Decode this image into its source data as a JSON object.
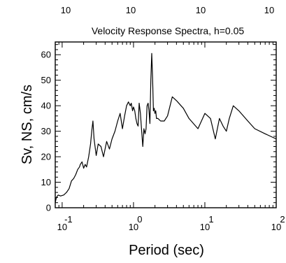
{
  "chart_data": {
    "type": "line",
    "title": "Velocity Response Spectra, h=0.05",
    "xlabel": "Period (sec)",
    "ylabel": "Sv, NS, cm/s",
    "xscale": "log",
    "xlim": [
      0.08,
      100
    ],
    "ylim": [
      0,
      65
    ],
    "grid": false,
    "x_ticks": [
      {
        "value": 0.1,
        "base": "10",
        "exp": "-1"
      },
      {
        "value": 1,
        "base": "10",
        "exp": "0"
      },
      {
        "value": 10,
        "base": "10",
        "exp": "1"
      },
      {
        "value": 100,
        "base": "10",
        "exp": "2"
      }
    ],
    "top_ticks": [
      {
        "value": 0.1,
        "label": "10"
      },
      {
        "value": 1,
        "label": "10"
      },
      {
        "value": 10,
        "label": "10"
      },
      {
        "value": 100,
        "label": "10"
      }
    ],
    "y_ticks": [
      0,
      10,
      20,
      30,
      40,
      50,
      60
    ],
    "series": [
      {
        "color": "#000000",
        "x": [
          0.08,
          0.083,
          0.088,
          0.095,
          0.105,
          0.115,
          0.125,
          0.135,
          0.145,
          0.155,
          0.165,
          0.175,
          0.18,
          0.19,
          0.2,
          0.21,
          0.22,
          0.235,
          0.25,
          0.26,
          0.27,
          0.28,
          0.3,
          0.32,
          0.35,
          0.38,
          0.42,
          0.46,
          0.5,
          0.55,
          0.6,
          0.65,
          0.7,
          0.75,
          0.8,
          0.85,
          0.9,
          0.93,
          0.97,
          1.0,
          1.04,
          1.08,
          1.12,
          1.16,
          1.2,
          1.25,
          1.3,
          1.35,
          1.4,
          1.45,
          1.5,
          1.55,
          1.6,
          1.65,
          1.7,
          1.75,
          1.8,
          1.85,
          1.9,
          1.95,
          2.0,
          2.05,
          2.1,
          2.2,
          2.4,
          2.7,
          3.0,
          3.5,
          4.0,
          5.0,
          6.0,
          8.0,
          10.0,
          12.0,
          14.0,
          16.0,
          18.0,
          20.0,
          22.0,
          25.0,
          30.0,
          40.0,
          50.0,
          70.0,
          100.0
        ],
        "y": [
          2.0,
          4.0,
          5.0,
          4.6,
          5.0,
          6.0,
          7.5,
          10.5,
          11.5,
          13.0,
          15.0,
          16.0,
          17.0,
          18.0,
          15.5,
          17.0,
          16.0,
          20.0,
          25.0,
          30.0,
          34.0,
          27.0,
          20.5,
          25.0,
          24.0,
          20.0,
          26.0,
          23.0,
          27.0,
          30.0,
          34.0,
          37.0,
          31.0,
          36.0,
          40.0,
          41.5,
          40.0,
          41.0,
          38.0,
          39.5,
          38.0,
          35.0,
          33.0,
          32.0,
          41.0,
          37.0,
          30.0,
          24.0,
          31.0,
          29.0,
          31.0,
          40.0,
          41.0,
          38.0,
          33.0,
          50.0,
          60.5,
          51.0,
          38.0,
          39.0,
          37.0,
          38.0,
          35.0,
          35.0,
          34.0,
          34.0,
          36.0,
          43.5,
          42.0,
          39.0,
          35.0,
          31.0,
          37.0,
          35.0,
          27.0,
          35.0,
          32.0,
          30.0,
          35.0,
          40.0,
          38.0,
          34.0,
          31.0,
          29.0,
          27.0
        ]
      }
    ]
  }
}
